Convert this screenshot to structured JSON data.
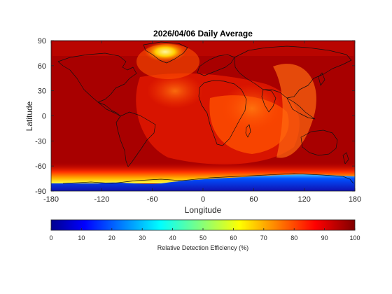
{
  "title": "2026/04/06 Daily Average",
  "map": {
    "xlabel": "Longitude",
    "ylabel": "Latitude",
    "x_ticks": [
      "-180",
      "-120",
      "-60",
      "0",
      "60",
      "120",
      "180"
    ],
    "y_ticks": [
      "90",
      "60",
      "30",
      "0",
      "-30",
      "-60",
      "-90"
    ],
    "x_range": [
      -180,
      180
    ],
    "y_range": [
      -90,
      90
    ]
  },
  "colorbar": {
    "label": "Relative Detection Efficiency (%)",
    "ticks": [
      "0",
      "10",
      "20",
      "30",
      "40",
      "50",
      "60",
      "70",
      "80",
      "90",
      "100"
    ],
    "range": [
      0,
      100
    ],
    "colormap": "jet"
  },
  "colors": {
    "high": "#a00000",
    "mid": "#ff4000",
    "low": "#0000a0"
  }
}
